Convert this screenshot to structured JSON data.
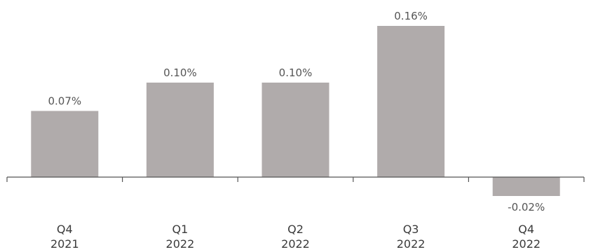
{
  "chart_data": {
    "type": "bar",
    "categories": [
      [
        "Q4",
        "2021"
      ],
      [
        "Q1",
        "2022"
      ],
      [
        "Q2",
        "2022"
      ],
      [
        "Q3",
        "2022"
      ],
      [
        "Q4",
        "2022"
      ]
    ],
    "values": [
      0.07,
      0.1,
      0.1,
      0.16,
      -0.02
    ],
    "data_labels": [
      "0.07%",
      "0.10%",
      "0.10%",
      "0.16%",
      "-0.02%"
    ],
    "ylim": [
      -0.02,
      0.16
    ],
    "bar_color": "#b0abab",
    "axis_color": "#555555",
    "grid": false
  }
}
